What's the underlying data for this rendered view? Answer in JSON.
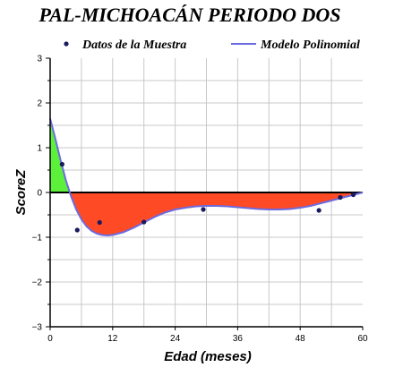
{
  "chart_data": {
    "type": "line",
    "title": "PAL-MICHOACÁN PERIODO DOS",
    "xlabel": "Edad (meses)",
    "ylabel": "ScoreZ",
    "xlim": [
      0,
      60
    ],
    "ylim": [
      -3,
      3
    ],
    "x_ticks": [
      0,
      12,
      24,
      36,
      48,
      60
    ],
    "y_ticks": [
      -3,
      -2,
      -1,
      0,
      1,
      2,
      3
    ],
    "grid": true,
    "legend_position": "top",
    "series": [
      {
        "name": "Datos de la Muestra",
        "kind": "scatter",
        "color": "#1a1a5e",
        "points": [
          {
            "x": 2.3,
            "y": 0.63
          },
          {
            "x": 5.2,
            "y": -0.84
          },
          {
            "x": 9.5,
            "y": -0.67
          },
          {
            "x": 18.0,
            "y": -0.66
          },
          {
            "x": 29.4,
            "y": -0.38
          },
          {
            "x": 51.6,
            "y": -0.4
          },
          {
            "x": 55.7,
            "y": -0.11
          },
          {
            "x": 58.2,
            "y": -0.05
          }
        ]
      },
      {
        "name": "Modelo Polinomial",
        "kind": "line",
        "color": "#6b6be0",
        "points": [
          {
            "x": 0,
            "y": 1.65
          },
          {
            "x": 1,
            "y": 1.2
          },
          {
            "x": 2,
            "y": 0.72
          },
          {
            "x": 3,
            "y": 0.28
          },
          {
            "x": 4,
            "y": -0.08
          },
          {
            "x": 5,
            "y": -0.38
          },
          {
            "x": 6,
            "y": -0.6
          },
          {
            "x": 7,
            "y": -0.76
          },
          {
            "x": 8,
            "y": -0.86
          },
          {
            "x": 9,
            "y": -0.92
          },
          {
            "x": 10,
            "y": -0.95
          },
          {
            "x": 11,
            "y": -0.96
          },
          {
            "x": 12,
            "y": -0.95
          },
          {
            "x": 14,
            "y": -0.89
          },
          {
            "x": 16,
            "y": -0.79
          },
          {
            "x": 18,
            "y": -0.67
          },
          {
            "x": 20,
            "y": -0.55
          },
          {
            "x": 22,
            "y": -0.45
          },
          {
            "x": 24,
            "y": -0.38
          },
          {
            "x": 26,
            "y": -0.34
          },
          {
            "x": 28,
            "y": -0.31
          },
          {
            "x": 30,
            "y": -0.3
          },
          {
            "x": 32,
            "y": -0.3
          },
          {
            "x": 34,
            "y": -0.31
          },
          {
            "x": 36,
            "y": -0.33
          },
          {
            "x": 38,
            "y": -0.35
          },
          {
            "x": 40,
            "y": -0.37
          },
          {
            "x": 42,
            "y": -0.38
          },
          {
            "x": 44,
            "y": -0.38
          },
          {
            "x": 46,
            "y": -0.37
          },
          {
            "x": 48,
            "y": -0.34
          },
          {
            "x": 50,
            "y": -0.3
          },
          {
            "x": 52,
            "y": -0.24
          },
          {
            "x": 54,
            "y": -0.18
          },
          {
            "x": 56,
            "y": -0.12
          },
          {
            "x": 58,
            "y": -0.06
          },
          {
            "x": 60,
            "y": 0.0
          }
        ]
      }
    ],
    "fill_above_zero_color": "#5cf03a",
    "fill_below_zero_color": "#ff4a26"
  }
}
